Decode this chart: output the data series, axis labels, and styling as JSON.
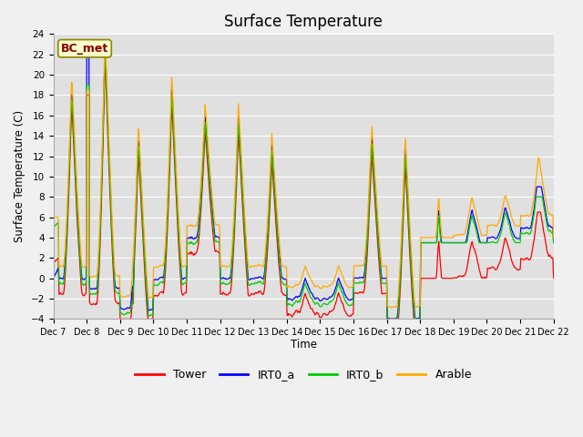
{
  "title": "Surface Temperature",
  "xlabel": "Time",
  "ylabel": "Surface Temperature (C)",
  "ylim": [
    -4,
    24
  ],
  "yticks": [
    -4,
    -2,
    0,
    2,
    4,
    6,
    8,
    10,
    12,
    14,
    16,
    18,
    20,
    22,
    24
  ],
  "xtick_labels": [
    "Dec 7",
    "Dec 8",
    "Dec 9",
    "Dec 10",
    "Dec 11",
    "Dec 12",
    "Dec 13",
    "Dec 14",
    "Dec 15",
    "Dec 16",
    "Dec 17",
    "Dec 18",
    "Dec 19",
    "Dec 20",
    "Dec 21",
    "Dec 22"
  ],
  "colors": {
    "Tower": "#ff0000",
    "IRT0_a": "#0000ff",
    "IRT0_b": "#00cc00",
    "Arable": "#ffaa00"
  },
  "plot_bg_color": "#e0e0e0",
  "fig_bg_color": "#f0f0f0",
  "annotation_text": "BC_met",
  "annotation_color": "#880000",
  "annotation_bg": "#ffffcc",
  "annotation_edge": "#888800"
}
